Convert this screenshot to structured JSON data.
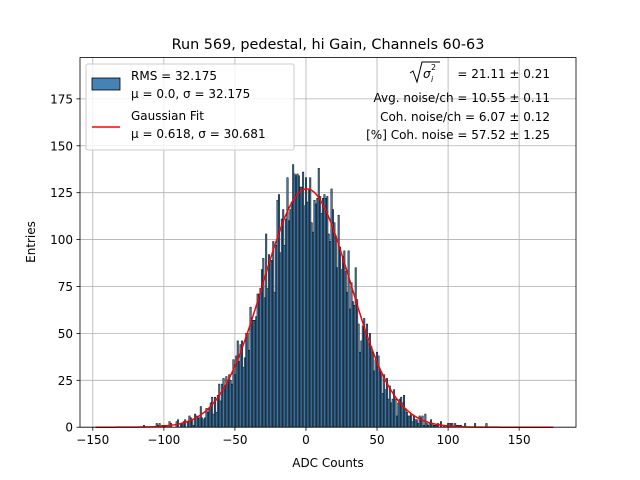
{
  "chart_data": {
    "type": "bar",
    "title": "Run 569, pedestal, hi Gain, Channels 60-63",
    "xlabel": "ADC Counts",
    "ylabel": "Entries",
    "xlim": [
      -159,
      190
    ],
    "ylim": [
      0,
      197
    ],
    "xticks": [
      -150,
      -100,
      -50,
      0,
      50,
      100,
      150
    ],
    "yticks": [
      0,
      25,
      50,
      75,
      100,
      125,
      150,
      175
    ],
    "xtick_labels": [
      "−150",
      "−100",
      "−50",
      "0",
      "50",
      "100",
      "150"
    ],
    "ytick_labels": [
      "0",
      "25",
      "50",
      "75",
      "100",
      "125",
      "150",
      "175"
    ],
    "grid": true,
    "legend_position": "top-left",
    "histogram": {
      "name": "RMS = 32.175",
      "mean_label": "μ = 0.0, σ = 32.175",
      "bin_start": -148,
      "bin_width": 1,
      "approx_mean": 0.0,
      "approx_sigma": 32.175,
      "peak_count": 140,
      "color": "#4682b4",
      "edge_color": "#000000"
    },
    "fit": {
      "name": "Gaussian Fit",
      "params_label": "μ = 0.618, σ = 30.681",
      "mu": 0.618,
      "sigma": 30.681,
      "amplitude": 127,
      "x_range": [
        -148,
        174
      ],
      "color": "#ff0000"
    },
    "annotations": {
      "sqrt_value": " = 21.11 ± 0.21",
      "avg_noise": "Avg. noise/ch = 10.55 ± 0.11",
      "coh_noise": "Coh. noise/ch = 6.07 ± 0.12",
      "pct_coh_noise": "[%] Coh. noise = 57.52 ± 1.25"
    }
  }
}
